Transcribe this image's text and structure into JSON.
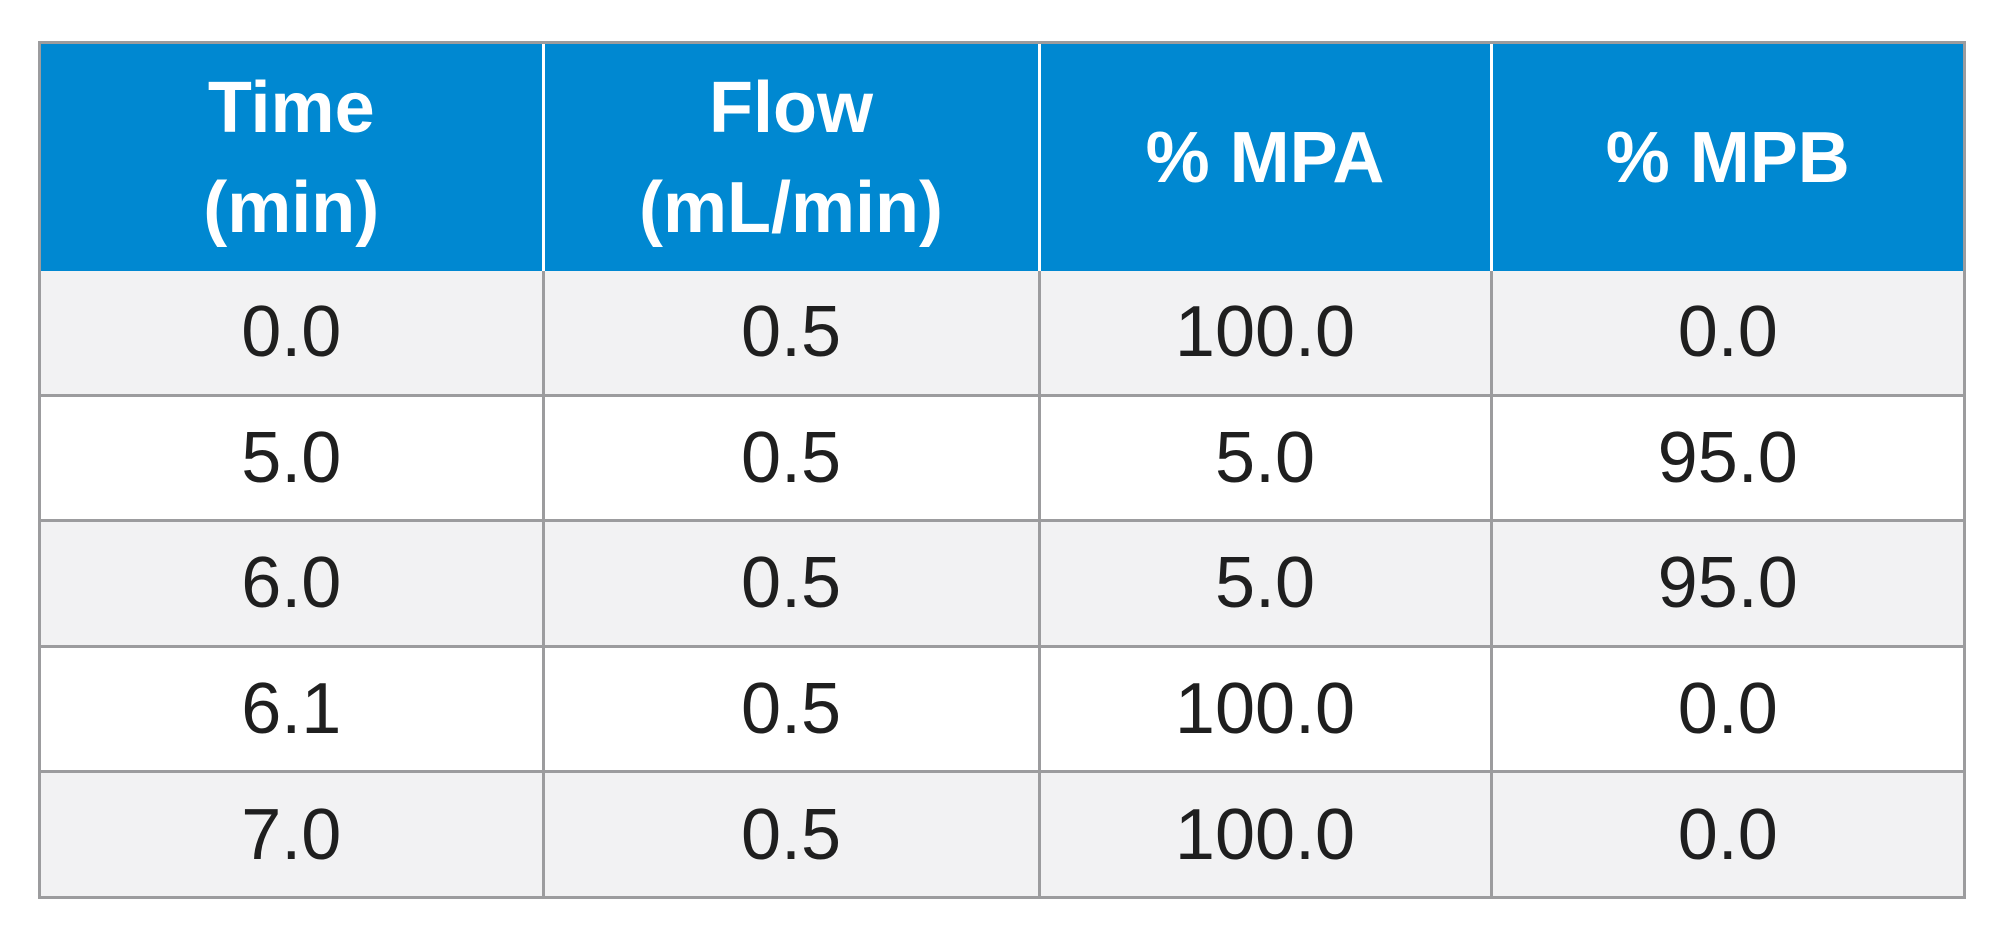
{
  "table": {
    "header": [
      {
        "line1": "Time",
        "line2": "(min)"
      },
      {
        "line1": "Flow",
        "line2": "(mL/min)"
      },
      {
        "line1": "% MPA",
        "line2": ""
      },
      {
        "line1": "% MPB",
        "line2": ""
      }
    ],
    "rows": [
      [
        "0.0",
        "0.5",
        "100.0",
        "0.0"
      ],
      [
        "5.0",
        "0.5",
        "5.0",
        "95.0"
      ],
      [
        "6.0",
        "0.5",
        "5.0",
        "95.0"
      ],
      [
        "6.1",
        "0.5",
        "100.0",
        "0.0"
      ],
      [
        "7.0",
        "0.5",
        "100.0",
        "0.0"
      ]
    ],
    "colors": {
      "header_bg": "#0088d1",
      "header_text": "#ffffff",
      "row_alt_bg": "#f2f2f3",
      "row_bg": "#ffffff",
      "border": "#9c9c9e",
      "cell_text": "#1f1f1f"
    }
  }
}
